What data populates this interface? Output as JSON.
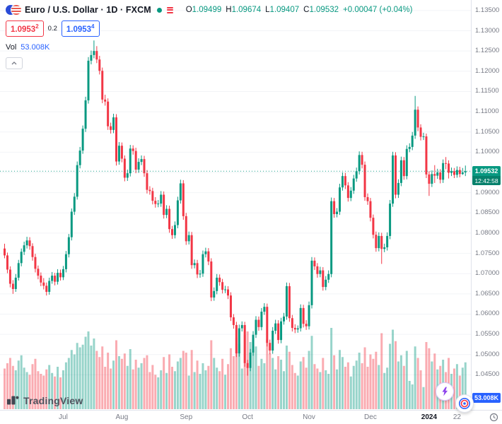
{
  "header": {
    "symbol_title": "Euro / U.S. Dollar · 1D · FXCM",
    "ohlc": {
      "o_label": "O",
      "o": "1.09499",
      "h_label": "H",
      "h": "1.09674",
      "l_label": "L",
      "l": "1.09407",
      "c_label": "C",
      "c": "1.09532",
      "change": "+0.00047 (+0.04%)"
    },
    "sell_price": "1.0953",
    "sell_sup": "2",
    "spread": "0.2",
    "buy_price": "1.0953",
    "buy_sup": "4",
    "vol_label": "Vol",
    "vol_value": "53.008K"
  },
  "price_scale": {
    "labels": [
      "1.13500",
      "1.13000",
      "1.12500",
      "1.12000",
      "1.11500",
      "1.11000",
      "1.10500",
      "1.10000",
      "1.09500",
      "1.09000",
      "1.08500",
      "1.08000",
      "1.07500",
      "1.07000",
      "1.06500",
      "1.06000",
      "1.05500",
      "1.05000",
      "1.04500"
    ],
    "current_price": "1.09532",
    "countdown": "12:42:58",
    "volume_badge": "53.008K"
  },
  "time_axis": {
    "labels": [
      {
        "text": "Jul",
        "i": 21
      },
      {
        "text": "Aug",
        "i": 42
      },
      {
        "text": "Sep",
        "i": 65
      },
      {
        "text": "Oct",
        "i": 87
      },
      {
        "text": "Nov",
        "i": 109
      },
      {
        "text": "Dec",
        "i": 131
      },
      {
        "text": "2024",
        "i": 152,
        "major": true
      },
      {
        "text": "22",
        "i": 162
      }
    ]
  },
  "footer": {
    "logo_text": "TradingView"
  },
  "colors": {
    "up": "#089981",
    "down": "#F23645",
    "accent_blue": "#2962FF",
    "text": "#131722",
    "muted": "#787b86",
    "grid": "#f2f4f7",
    "axis_border": "#e0e3eb"
  },
  "chart_data": {
    "type": "candlestick",
    "title": "Euro / U.S. Dollar · 1D · FXCM",
    "symbol": "EUR/USD",
    "timeframe": "1D",
    "exchange": "FXCM",
    "ylim": [
      1.0442,
      1.1362
    ],
    "y_ticks": [
      1.045,
      1.05,
      1.055,
      1.06,
      1.065,
      1.07,
      1.075,
      1.08,
      1.085,
      1.09,
      1.095,
      1.1,
      1.105,
      1.11,
      1.115,
      1.12,
      1.125,
      1.13,
      1.135
    ],
    "x_tick_labels": [
      "Jul",
      "Aug",
      "Sep",
      "Oct",
      "Nov",
      "Dec",
      "2024",
      "22"
    ],
    "last_close": 1.09532,
    "volume_unit": "K",
    "candle_format": [
      "open",
      "high",
      "low",
      "close",
      "volume_k"
    ],
    "candles": [
      [
        1.0762,
        1.0774,
        1.0738,
        1.0745,
        46
      ],
      [
        1.0745,
        1.0752,
        1.0701,
        1.071,
        52
      ],
      [
        1.071,
        1.0718,
        1.0666,
        1.0675,
        58
      ],
      [
        1.0675,
        1.0684,
        1.065,
        1.0662,
        49
      ],
      [
        1.0662,
        1.0699,
        1.0655,
        1.069,
        44
      ],
      [
        1.069,
        1.0734,
        1.0683,
        1.0726,
        55
      ],
      [
        1.0726,
        1.0762,
        1.0718,
        1.0754,
        61
      ],
      [
        1.0754,
        1.0779,
        1.0746,
        1.077,
        47
      ],
      [
        1.077,
        1.0791,
        1.0762,
        1.0782,
        42
      ],
      [
        1.0782,
        1.079,
        1.0759,
        1.0768,
        39
      ],
      [
        1.0768,
        1.0775,
        1.0732,
        1.0741,
        51
      ],
      [
        1.0741,
        1.0749,
        1.0703,
        1.0712,
        57
      ],
      [
        1.0712,
        1.072,
        1.0686,
        1.0695,
        43
      ],
      [
        1.0695,
        1.0703,
        1.0669,
        1.0678,
        40
      ],
      [
        1.0678,
        1.0689,
        1.0661,
        1.067,
        38
      ],
      [
        1.067,
        1.0678,
        1.0646,
        1.0655,
        45
      ],
      [
        1.0655,
        1.069,
        1.0648,
        1.0682,
        50
      ],
      [
        1.0682,
        1.0704,
        1.0675,
        1.0695,
        41
      ],
      [
        1.0695,
        1.0702,
        1.0671,
        1.068,
        37
      ],
      [
        1.068,
        1.0711,
        1.0673,
        1.0702,
        48
      ],
      [
        1.0702,
        1.071,
        1.0683,
        1.0691,
        36
      ],
      [
        1.0691,
        1.0719,
        1.0684,
        1.0711,
        44
      ],
      [
        1.0711,
        1.0756,
        1.0703,
        1.0748,
        53
      ],
      [
        1.0748,
        1.0798,
        1.074,
        1.079,
        58
      ],
      [
        1.079,
        1.0861,
        1.0782,
        1.0853,
        67
      ],
      [
        1.0853,
        1.0899,
        1.0845,
        1.089,
        62
      ],
      [
        1.089,
        1.0977,
        1.0883,
        1.0968,
        75
      ],
      [
        1.0968,
        1.1013,
        1.096,
        1.1004,
        70
      ],
      [
        1.1004,
        1.1066,
        1.0996,
        1.1058,
        73
      ],
      [
        1.1058,
        1.1137,
        1.105,
        1.1128,
        82
      ],
      [
        1.1128,
        1.1235,
        1.112,
        1.1226,
        88
      ],
      [
        1.1226,
        1.1251,
        1.1217,
        1.124,
        72
      ],
      [
        1.124,
        1.1276,
        1.1232,
        1.125,
        80
      ],
      [
        1.125,
        1.1262,
        1.122,
        1.1229,
        66
      ],
      [
        1.1229,
        1.1238,
        1.1192,
        1.1201,
        59
      ],
      [
        1.1201,
        1.1209,
        1.1121,
        1.113,
        71
      ],
      [
        1.113,
        1.1142,
        1.1115,
        1.1125,
        48
      ],
      [
        1.1125,
        1.1133,
        1.1055,
        1.1064,
        64
      ],
      [
        1.1064,
        1.1073,
        1.1046,
        1.1055,
        46
      ],
      [
        1.1055,
        1.1095,
        1.1047,
        1.1086,
        55
      ],
      [
        1.1086,
        1.1094,
        1.0967,
        1.0977,
        78
      ],
      [
        1.0977,
        1.1025,
        1.0969,
        1.1016,
        60
      ],
      [
        1.1016,
        1.1024,
        1.0975,
        1.0984,
        57
      ],
      [
        1.0984,
        1.0992,
        1.0928,
        1.0937,
        63
      ],
      [
        1.0937,
        1.0957,
        1.0929,
        1.0948,
        49
      ],
      [
        1.0948,
        1.1018,
        1.094,
        1.1009,
        68
      ],
      [
        1.1009,
        1.1017,
        1.0994,
        1.1003,
        45
      ],
      [
        1.1003,
        1.1011,
        1.0948,
        1.0957,
        56
      ],
      [
        1.0957,
        1.0985,
        1.0949,
        1.0976,
        47
      ],
      [
        1.0976,
        1.0992,
        1.0968,
        1.0983,
        52
      ],
      [
        1.0983,
        1.0991,
        1.0939,
        1.0948,
        58
      ],
      [
        1.0948,
        1.0956,
        1.0898,
        1.0907,
        61
      ],
      [
        1.0907,
        1.0916,
        1.0895,
        1.0904,
        42
      ],
      [
        1.0904,
        1.0912,
        1.0871,
        1.088,
        50
      ],
      [
        1.088,
        1.0889,
        1.0863,
        1.0872,
        39
      ],
      [
        1.0872,
        1.0882,
        1.0864,
        1.0873,
        36
      ],
      [
        1.0873,
        1.0904,
        1.0865,
        1.0895,
        44
      ],
      [
        1.0895,
        1.0903,
        1.0836,
        1.0845,
        59
      ],
      [
        1.0845,
        1.0869,
        1.0837,
        1.086,
        41
      ],
      [
        1.086,
        1.0868,
        1.0801,
        1.081,
        62
      ],
      [
        1.081,
        1.0818,
        1.0786,
        1.0795,
        48
      ],
      [
        1.0795,
        1.0829,
        1.0787,
        1.082,
        43
      ],
      [
        1.082,
        1.089,
        1.0812,
        1.0881,
        54
      ],
      [
        1.0881,
        1.0932,
        1.0873,
        1.0923,
        58
      ],
      [
        1.0923,
        1.0931,
        1.0833,
        1.0842,
        66
      ],
      [
        1.0842,
        1.085,
        1.0771,
        1.078,
        64
      ],
      [
        1.078,
        1.0804,
        1.0772,
        1.0795,
        38
      ],
      [
        1.0795,
        1.0803,
        1.0712,
        1.0721,
        67
      ],
      [
        1.0721,
        1.0735,
        1.0713,
        1.0726,
        42
      ],
      [
        1.0726,
        1.0734,
        1.0689,
        1.0698,
        55
      ],
      [
        1.0698,
        1.0709,
        1.069,
        1.07,
        40
      ],
      [
        1.07,
        1.0757,
        1.0692,
        1.0748,
        52
      ],
      [
        1.0748,
        1.0764,
        1.074,
        1.0755,
        44
      ],
      [
        1.0755,
        1.0763,
        1.0721,
        1.073,
        49
      ],
      [
        1.073,
        1.0738,
        1.0632,
        1.0641,
        78
      ],
      [
        1.0641,
        1.0666,
        1.0633,
        1.0657,
        58
      ],
      [
        1.0657,
        1.0699,
        1.0649,
        1.069,
        47
      ],
      [
        1.069,
        1.0698,
        1.067,
        1.0679,
        43
      ],
      [
        1.0679,
        1.0687,
        1.0651,
        1.066,
        57
      ],
      [
        1.066,
        1.067,
        1.0652,
        1.0661,
        39
      ],
      [
        1.0661,
        1.0669,
        1.0637,
        1.0646,
        51
      ],
      [
        1.0646,
        1.0654,
        1.0583,
        1.0592,
        69
      ],
      [
        1.0592,
        1.06,
        1.0564,
        1.0573,
        60
      ],
      [
        1.0573,
        1.0581,
        1.0494,
        1.0503,
        81
      ],
      [
        1.0503,
        1.0574,
        1.0495,
        1.0565,
        74
      ],
      [
        1.0565,
        1.0582,
        1.0557,
        1.0573,
        46
      ],
      [
        1.0573,
        1.0581,
        1.047,
        1.0479,
        84
      ],
      [
        1.0479,
        1.0487,
        1.0448,
        1.0467,
        88
      ],
      [
        1.0467,
        1.0514,
        1.0459,
        1.0505,
        76
      ],
      [
        1.0505,
        1.0558,
        1.0497,
        1.0549,
        68
      ],
      [
        1.0549,
        1.0595,
        1.0541,
        1.0586,
        71
      ],
      [
        1.0586,
        1.0594,
        1.0559,
        1.0568,
        49
      ],
      [
        1.0568,
        1.0615,
        1.056,
        1.0606,
        57
      ],
      [
        1.0606,
        1.0627,
        1.0598,
        1.0618,
        52
      ],
      [
        1.0618,
        1.0626,
        1.052,
        1.0529,
        79
      ],
      [
        1.0529,
        1.0537,
        1.0501,
        1.051,
        63
      ],
      [
        1.051,
        1.0568,
        1.0502,
        1.0559,
        58
      ],
      [
        1.0559,
        1.0586,
        1.0551,
        1.0577,
        45
      ],
      [
        1.0577,
        1.0585,
        1.0527,
        1.0536,
        60
      ],
      [
        1.0536,
        1.0591,
        1.0528,
        1.0582,
        56
      ],
      [
        1.0582,
        1.0603,
        1.0574,
        1.0594,
        43
      ],
      [
        1.0594,
        1.0678,
        1.0586,
        1.0669,
        72
      ],
      [
        1.0669,
        1.0677,
        1.0581,
        1.059,
        65
      ],
      [
        1.059,
        1.0598,
        1.0557,
        1.0566,
        50
      ],
      [
        1.0566,
        1.0575,
        1.0553,
        1.0562,
        41
      ],
      [
        1.0562,
        1.0572,
        1.0554,
        1.0565,
        38
      ],
      [
        1.0565,
        1.0624,
        1.0557,
        1.0615,
        54
      ],
      [
        1.0615,
        1.0623,
        1.0567,
        1.0576,
        59
      ],
      [
        1.0576,
        1.0585,
        1.0561,
        1.057,
        47
      ],
      [
        1.057,
        1.0631,
        1.0562,
        1.0622,
        66
      ],
      [
        1.0622,
        1.0741,
        1.0614,
        1.0732,
        83
      ],
      [
        1.0732,
        1.074,
        1.0709,
        1.0718,
        51
      ],
      [
        1.0718,
        1.0726,
        1.069,
        1.0699,
        46
      ],
      [
        1.0699,
        1.0717,
        1.0691,
        1.0708,
        42
      ],
      [
        1.0708,
        1.0716,
        1.0658,
        1.0667,
        58
      ],
      [
        1.0667,
        1.0694,
        1.0659,
        1.0685,
        44
      ],
      [
        1.0685,
        1.0708,
        1.0677,
        1.0699,
        40
      ],
      [
        1.0699,
        1.0888,
        1.0691,
        1.0879,
        92
      ],
      [
        1.0879,
        1.0887,
        1.0838,
        1.0847,
        61
      ],
      [
        1.0847,
        1.0862,
        1.0839,
        1.0853,
        45
      ],
      [
        1.0853,
        1.0922,
        1.0845,
        1.0913,
        67
      ],
      [
        1.0913,
        1.095,
        1.0905,
        1.0941,
        59
      ],
      [
        1.0941,
        1.0949,
        1.0909,
        1.0918,
        48
      ],
      [
        1.0918,
        1.0926,
        1.0878,
        1.0887,
        53
      ],
      [
        1.0887,
        1.0914,
        1.0879,
        1.0905,
        37
      ],
      [
        1.0905,
        1.0944,
        1.0897,
        1.0935,
        49
      ],
      [
        1.0935,
        1.0962,
        1.0927,
        1.0953,
        55
      ],
      [
        1.0953,
        1.1002,
        1.0945,
        1.0993,
        64
      ],
      [
        1.0993,
        1.1001,
        1.096,
        1.0969,
        52
      ],
      [
        1.0969,
        1.0977,
        1.088,
        1.0889,
        70
      ],
      [
        1.0889,
        1.0898,
        1.087,
        1.0879,
        48
      ],
      [
        1.0879,
        1.0887,
        1.0829,
        1.0838,
        62
      ],
      [
        1.0838,
        1.0846,
        1.0787,
        1.0796,
        57
      ],
      [
        1.0796,
        1.0804,
        1.0754,
        1.0763,
        65
      ],
      [
        1.0763,
        1.0802,
        1.0755,
        1.0793,
        50
      ],
      [
        1.0793,
        1.0801,
        1.0724,
        1.0761,
        86
      ],
      [
        1.0761,
        1.0774,
        1.0753,
        1.0765,
        41
      ],
      [
        1.0765,
        1.0802,
        1.0757,
        1.0793,
        47
      ],
      [
        1.0793,
        1.0882,
        1.0785,
        1.0873,
        74
      ],
      [
        1.0873,
        1.1001,
        1.0865,
        1.0992,
        90
      ],
      [
        1.0992,
        1.1,
        1.0886,
        1.0895,
        77
      ],
      [
        1.0895,
        1.0933,
        1.0887,
        1.0924,
        54
      ],
      [
        1.0924,
        1.0989,
        1.0916,
        1.098,
        61
      ],
      [
        1.098,
        1.0988,
        1.0932,
        1.0941,
        49
      ],
      [
        1.0941,
        1.1017,
        1.0933,
        1.1008,
        66
      ],
      [
        1.1008,
        1.1022,
        1.1,
        1.1013,
        32
      ],
      [
        1.1013,
        1.105,
        1.1005,
        1.1041,
        28
      ],
      [
        1.1041,
        1.1139,
        1.1033,
        1.1105,
        71
      ],
      [
        1.1105,
        1.1113,
        1.1052,
        1.1061,
        58
      ],
      [
        1.1061,
        1.1069,
        1.1029,
        1.1038,
        44
      ],
      [
        1.1038,
        1.1048,
        1.103,
        1.1039,
        25
      ],
      [
        1.1039,
        1.1046,
        1.0936,
        1.0945,
        76
      ],
      [
        1.0945,
        1.0953,
        1.0892,
        1.0922,
        69
      ],
      [
        1.0922,
        1.0955,
        1.0914,
        1.0946,
        54
      ],
      [
        1.0946,
        1.0968,
        1.0924,
        1.0942,
        63
      ],
      [
        1.0942,
        1.0959,
        1.0934,
        1.095,
        45
      ],
      [
        1.095,
        1.0958,
        1.0923,
        1.0932,
        49
      ],
      [
        1.0932,
        1.0982,
        1.0924,
        1.0973,
        56
      ],
      [
        1.0973,
        1.0988,
        1.0958,
        1.0972,
        42
      ],
      [
        1.0972,
        1.098,
        1.0935,
        1.0949,
        58
      ],
      [
        1.0949,
        1.0962,
        1.0941,
        1.0953,
        40
      ],
      [
        1.0953,
        1.0961,
        1.0936,
        1.0944,
        46
      ],
      [
        1.0944,
        1.0965,
        1.0937,
        1.0956,
        51
      ],
      [
        1.0956,
        1.0964,
        1.0938,
        1.0946,
        38
      ],
      [
        1.0946,
        1.0961,
        1.0944,
        1.095,
        47
      ],
      [
        1.095,
        1.0967,
        1.0941,
        1.0953,
        53
      ]
    ]
  }
}
